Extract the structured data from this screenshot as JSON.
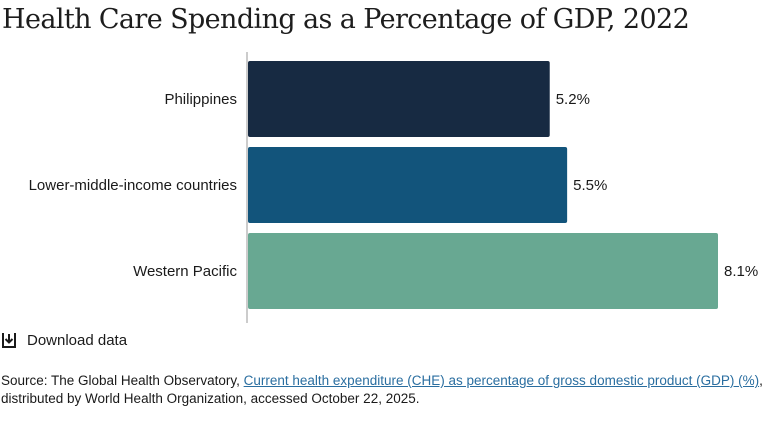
{
  "chart_data": {
    "type": "bar",
    "orientation": "horizontal",
    "title": "Health Care Spending as a Percentage of GDP, 2022",
    "categories": [
      "Philippines",
      "Lower-middle-income countries",
      "Western Pacific"
    ],
    "values": [
      5.2,
      5.5,
      8.1
    ],
    "value_labels": [
      "5.2%",
      "5.5%",
      "8.1%"
    ],
    "colors": [
      "#172a42",
      "#12547b",
      "#68a892"
    ],
    "xlim": [
      0,
      8.1
    ],
    "grid": false
  },
  "download": {
    "label": "Download data",
    "icon": "download-icon"
  },
  "source": {
    "prefix": "Source: The Global Health Observatory, ",
    "link_text": "Current health expenditure (CHE) as percentage of gross domestic product (GDP) (%)",
    "suffix": ", distributed by World Health Organization, accessed October 22, 2025."
  }
}
